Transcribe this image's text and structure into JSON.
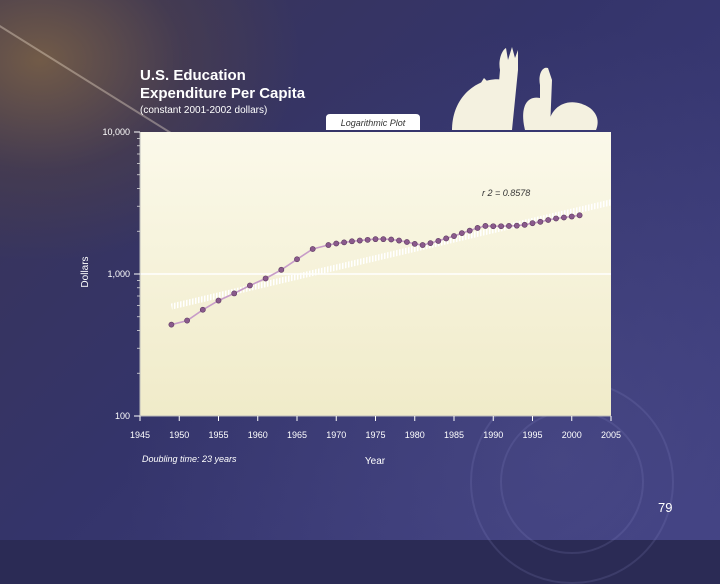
{
  "slide": {
    "title_line1": "U.S. Education",
    "title_line2": "Expenditure Per Capita",
    "subtitle": "(constant 2001-2002 dollars)",
    "page_number": "79"
  },
  "colors": {
    "plot_bg_top": "#fbf9ea",
    "plot_bg_bottom": "#f0ebc9",
    "series": "#c79cc8",
    "marker": "#8a5a8c",
    "trend": "#ffffff",
    "axis_text": "#ffffff"
  },
  "chart_data": {
    "type": "line",
    "title": "U.S. Education Expenditure Per Capita",
    "subtitle": "(constant 2001-2002 dollars)",
    "tab_label": "Logarithmic Plot",
    "xlabel": "Year",
    "ylabel": "Dollars",
    "xlim": [
      1945,
      2005
    ],
    "ylim": [
      100,
      10000
    ],
    "y_scale": "log",
    "x_ticks": [
      "1945",
      "1950",
      "1955",
      "1960",
      "1965",
      "1970",
      "1975",
      "1980",
      "1985",
      "1990",
      "1995",
      "2000",
      "2005"
    ],
    "y_ticks": [
      "100",
      "1,000",
      "10,000"
    ],
    "annotation_r2": "r 2 = 0.8578",
    "annotation_doubling": "Doubling time: 23 years",
    "grid": false,
    "series": [
      {
        "x": [
          1949,
          1951,
          1953,
          1955,
          1957,
          1959,
          1961,
          1963,
          1965,
          1967,
          1969,
          1970,
          1971,
          1972,
          1973,
          1974,
          1975,
          1976,
          1977,
          1978,
          1979,
          1980,
          1981,
          1982,
          1983,
          1984,
          1985,
          1986,
          1987,
          1988,
          1989,
          1990,
          1991,
          1992,
          1993,
          1994,
          1995,
          1996,
          1997,
          1998,
          1999,
          2000,
          2001
        ],
        "y": [
          440,
          470,
          560,
          650,
          730,
          830,
          930,
          1070,
          1270,
          1500,
          1600,
          1640,
          1670,
          1700,
          1720,
          1740,
          1760,
          1760,
          1750,
          1720,
          1680,
          1630,
          1600,
          1650,
          1710,
          1780,
          1850,
          1940,
          2020,
          2110,
          2180,
          2170,
          2170,
          2180,
          2190,
          2220,
          2280,
          2330,
          2400,
          2460,
          2500,
          2540,
          2590
        ]
      }
    ],
    "trend_line": {
      "x": [
        1949,
        2005
      ],
      "y": [
        590,
        3200
      ]
    }
  }
}
